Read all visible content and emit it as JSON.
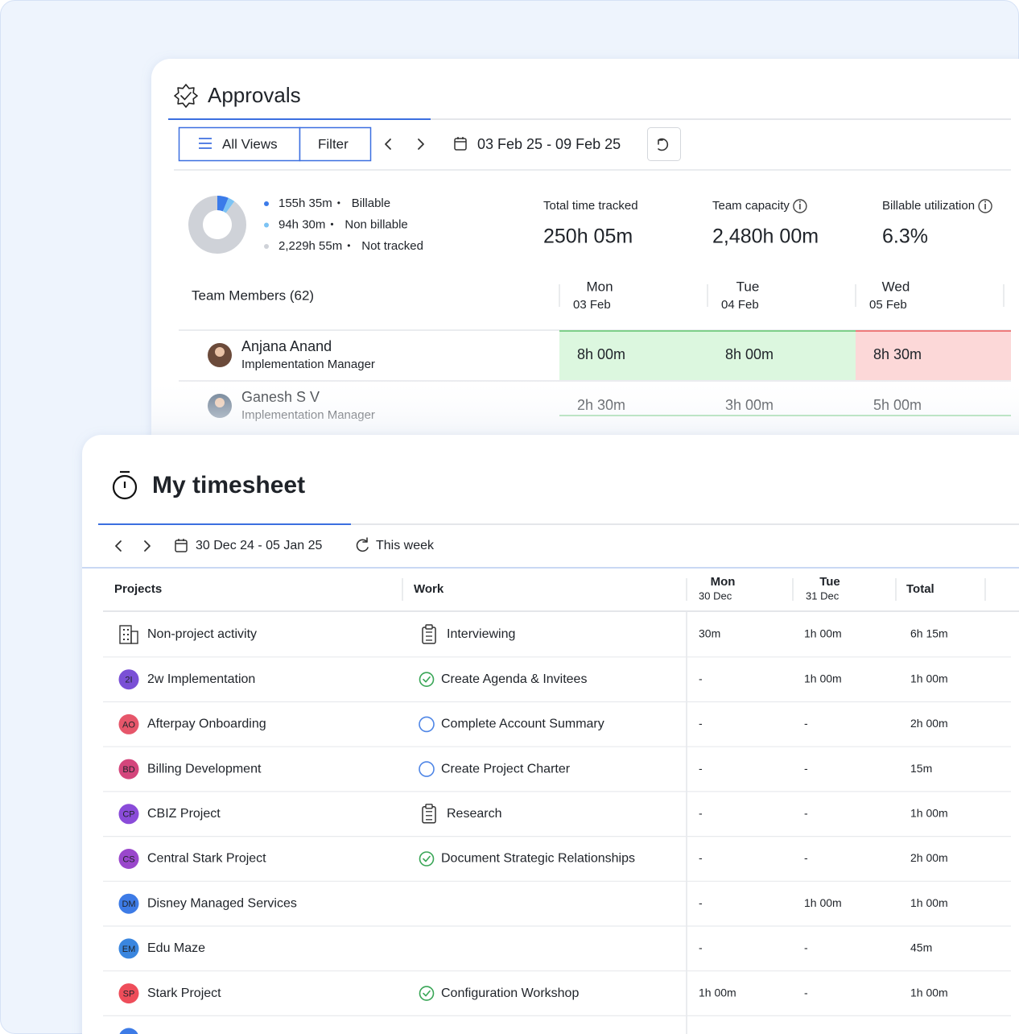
{
  "approvals": {
    "title": "Approvals",
    "toolbar": {
      "views": "All Views",
      "filter": "Filter",
      "date_range": "03 Feb 25 - 09 Feb 25"
    },
    "legend_separator": "•",
    "legend": [
      {
        "value": "155h 35m",
        "label": "Billable",
        "color": "#3b7be9"
      },
      {
        "value": "94h 30m",
        "label": "Non billable",
        "color": "#7cc3f4"
      },
      {
        "value": "2,229h 55m",
        "label": "Not tracked",
        "color": "#cfd2d8"
      }
    ],
    "stats": [
      {
        "label": "Total time tracked",
        "value": "250h 05m",
        "info": false
      },
      {
        "label": "Team capacity",
        "value": "2,480h 00m",
        "info": true
      },
      {
        "label": "Billable utilization",
        "value": "6.3%",
        "info": true
      }
    ],
    "team_header": "Team Members (62)",
    "days": [
      {
        "day": "Mon",
        "date": "03 Feb"
      },
      {
        "day": "Tue",
        "date": "04 Feb"
      },
      {
        "day": "Wed",
        "date": "05 Feb"
      }
    ],
    "members": [
      {
        "name": "Anjana Anand",
        "role": "Implementation Manager",
        "avatar_color": "#6b4a3a",
        "cells": [
          {
            "value": "8h 00m",
            "status": "full"
          },
          {
            "value": "8h 00m",
            "status": "full"
          },
          {
            "value": "8h 30m",
            "status": "over"
          }
        ]
      },
      {
        "name": "Ganesh S V",
        "role": "Implementation Manager",
        "avatar_color": "#5a6f86",
        "cells": [
          {
            "value": "2h 30m",
            "status": "under"
          },
          {
            "value": "3h 00m",
            "status": "under"
          },
          {
            "value": "5h 00m",
            "status": "under"
          }
        ]
      }
    ]
  },
  "timesheet": {
    "title": "My timesheet",
    "date_range": "30 Dec 24 - 05 Jan 25",
    "this_week": "This week",
    "columns": {
      "projects": "Projects",
      "work": "Work",
      "days": [
        {
          "day": "Mon",
          "date": "30 Dec"
        },
        {
          "day": "Tue",
          "date": "31 Dec"
        }
      ],
      "total": "Total"
    },
    "rows": [
      {
        "project": "Non-project activity",
        "project_icon": "building",
        "work": "Interviewing",
        "work_icon": "clipboard",
        "cells": [
          "30m",
          "1h 00m",
          "6h 15m"
        ],
        "colors": [
          "#1f2329",
          "#1f2329",
          "#1f2329"
        ]
      },
      {
        "project": "2w Implementation",
        "initials": "2I",
        "avatar_color": "#7a50d6",
        "work": "Create Agenda & Invitees",
        "work_icon": "check",
        "cells": [
          "-",
          "1h 00m",
          "1h 00m"
        ],
        "colors": [
          "#1f2329",
          "#2e8b3a",
          "#2e8b3a"
        ]
      },
      {
        "project": "Afterpay Onboarding",
        "initials": "AO",
        "avatar_color": "#e6566a",
        "work": "Complete Account Summary",
        "work_icon": "circle",
        "cells": [
          "-",
          "-",
          "2h 00m"
        ],
        "colors": [
          "#1f2329",
          "#1f2329",
          "#1f2329"
        ]
      },
      {
        "project": "Billing Development",
        "initials": "BD",
        "avatar_color": "#d4467c",
        "work": "Create Project Charter",
        "work_icon": "circle",
        "cells": [
          "-",
          "-",
          "15m"
        ],
        "colors": [
          "#1f2329",
          "#1f2329",
          "#1f2329"
        ]
      },
      {
        "project": "CBIZ Project",
        "initials": "CP",
        "avatar_color": "#8a4bd9",
        "work": "Research",
        "work_icon": "clipboard",
        "cells": [
          "-",
          "-",
          "1h 00m"
        ],
        "colors": [
          "#1f2329",
          "#1f2329",
          "#1f2329"
        ]
      },
      {
        "project": "Central Stark Project",
        "initials": "CS",
        "avatar_color": "#9a47cc",
        "work": "Document Strategic Relationships",
        "work_icon": "check",
        "cells": [
          "-",
          "-",
          "2h 00m"
        ],
        "colors": [
          "#1f2329",
          "#1f2329",
          "#2e8b3a"
        ]
      },
      {
        "project": "Disney Managed Services",
        "initials": "DM",
        "avatar_color": "#3d7be6",
        "cells": [
          "-",
          "1h 00m",
          "1h 00m"
        ],
        "colors": [
          "#1f2329",
          "#2e8b3a",
          "#2e8b3a"
        ]
      },
      {
        "project": "Edu Maze",
        "initials": "EM",
        "avatar_color": "#3a86df",
        "cells": [
          "-",
          "-",
          "45m"
        ],
        "colors": [
          "#1f2329",
          "#1f2329",
          "#2e8b3a"
        ]
      },
      {
        "project": "Stark Project",
        "initials": "SP",
        "avatar_color": "#ee4d5a",
        "work": "Configuration Workshop",
        "work_icon": "check",
        "cells": [
          "1h 00m",
          "-",
          "1h 00m"
        ],
        "colors": [
          "#2e8b3a",
          "#1f2329",
          "#2e8b3a"
        ]
      }
    ]
  }
}
